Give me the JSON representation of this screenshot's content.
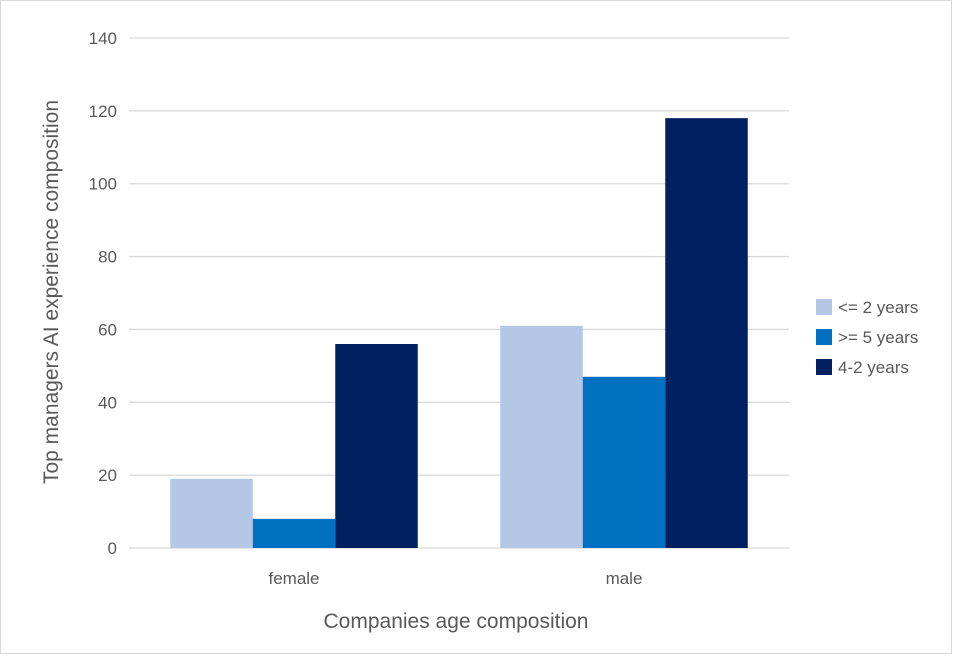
{
  "chart_data": {
    "type": "bar",
    "xlabel": "Companies age composition",
    "ylabel": "Top managers AI experience composition",
    "categories": [
      "female",
      "male"
    ],
    "series": [
      {
        "name": "<= 2 years",
        "values": [
          19,
          61
        ],
        "color": "#b4c7e7"
      },
      {
        "name": ">= 5 years",
        "values": [
          8,
          47
        ],
        "color": "#0070c0"
      },
      {
        "name": "4-2 years",
        "values": [
          56,
          118
        ],
        "color": "#002060"
      }
    ],
    "ylim": [
      0,
      140
    ],
    "yticks": [
      0,
      20,
      40,
      60,
      80,
      100,
      120,
      140
    ],
    "grid": true,
    "legend_position": "right"
  }
}
